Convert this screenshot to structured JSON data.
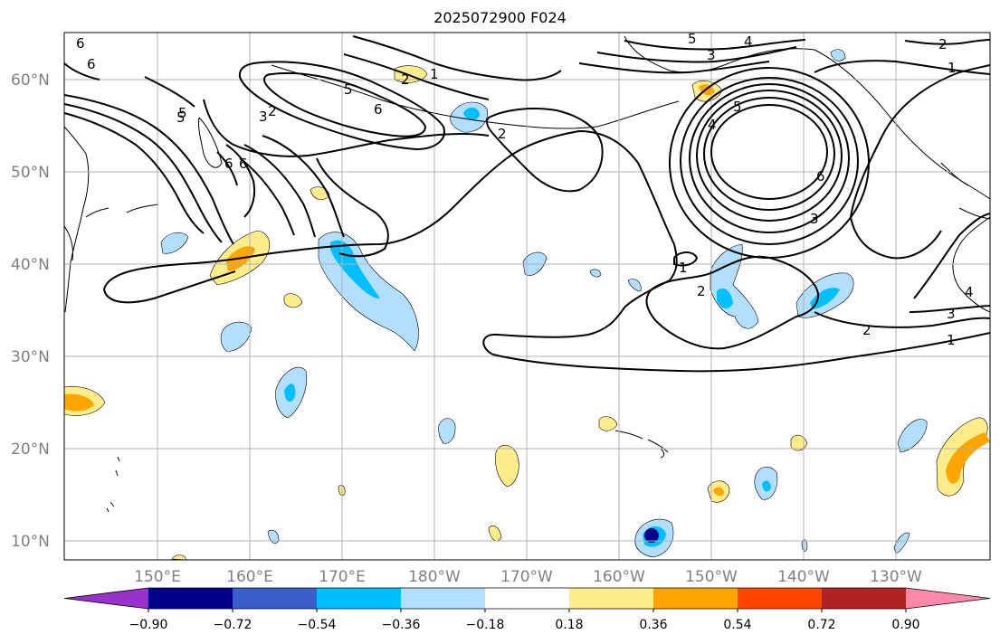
{
  "title": "2025072900 F024",
  "lat_labels": [
    "60°N",
    "50°N",
    "40°N",
    "30°N",
    "20°N",
    "10°N"
  ],
  "lon_labels": [
    "150°E",
    "160°E",
    "170°E",
    "180°W",
    "170°W",
    "160°W",
    "150°W",
    "140°W",
    "130°W"
  ],
  "colorbar": {
    "ticks": [
      "−0.90",
      "−0.72",
      "−0.54",
      "−0.36",
      "−0.18",
      "0.18",
      "0.36",
      "0.54",
      "0.72",
      "0.90"
    ],
    "colors": [
      "#9932cc",
      "#00008b",
      "#3a5fcd",
      "#00bfff",
      "#b2dfff",
      "#ffffff",
      "#ffec8b",
      "#ffa500",
      "#ff4500",
      "#b22222",
      "#ff88aa"
    ]
  },
  "contour_labels": {
    "c1": "6",
    "c2": "6",
    "c3": "5",
    "c4": "5",
    "c5": "6",
    "c6": "6",
    "c7": "2",
    "c8": "1",
    "c9": "5",
    "c10": "4",
    "c11": "3",
    "c12": "2",
    "c13": "1",
    "c14": "2",
    "c15": "4",
    "c16": "5",
    "c17": "6",
    "c18": "3",
    "c19": "1",
    "c20": "2",
    "c21": "2",
    "c22": "1",
    "c23": "3",
    "c24": "4",
    "c25": "2",
    "c26": "3",
    "c27": "6",
    "c28": "5"
  },
  "colors": {
    "negative_light": "#b2dfff",
    "negative_mid": "#00bfff",
    "positive_light": "#ffec8b",
    "positive_mid": "#ffa500",
    "positive_high": "#ff4500",
    "grid": "#b0b0b0",
    "contour": "#000000"
  }
}
